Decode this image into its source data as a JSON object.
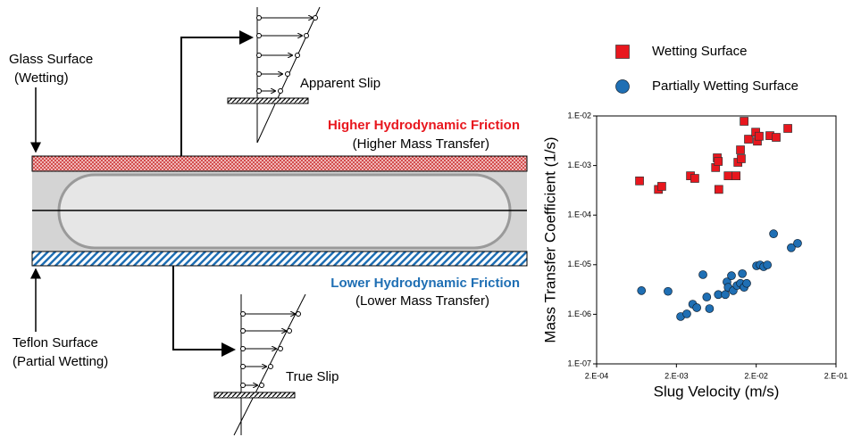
{
  "diagram": {
    "glass_label": "Glass Surface",
    "glass_sub": "(Wetting)",
    "apparent_slip": "Apparent Slip",
    "higher_friction": "Higher Hydrodynamic Friction",
    "higher_sub": "(Higher Mass Transfer)",
    "lower_friction": "Lower Hydrodynamic Friction",
    "lower_sub": "(Lower Mass Transfer)",
    "teflon_label": "Teflon Surface",
    "teflon_sub": "(Partial Wetting)",
    "true_slip": "True Slip"
  },
  "chart_data": {
    "type": "scatter",
    "xlabel": "Slug Velocity (m/s)",
    "ylabel": "Mass Transfer Coefficient (1/s)",
    "log_x": true,
    "log_y": true,
    "xlim": [
      0.0002,
      0.2
    ],
    "ylim": [
      1e-07,
      0.01
    ],
    "xticks": [
      {
        "value": 0.0002,
        "label": "2.E-04"
      },
      {
        "value": 0.002,
        "label": "2.E-03"
      },
      {
        "value": 0.02,
        "label": "2.E-02"
      },
      {
        "value": 0.2,
        "label": "2.E-01"
      }
    ],
    "yticks": [
      {
        "value": 1e-07,
        "label": "1.E-07"
      },
      {
        "value": 1e-06,
        "label": "1.E-06"
      },
      {
        "value": 1e-05,
        "label": "1.E-05"
      },
      {
        "value": 0.0001,
        "label": "1.E-04"
      },
      {
        "value": 0.001,
        "label": "1.E-03"
      },
      {
        "value": 0.01,
        "label": "1.E-02"
      }
    ],
    "series": [
      {
        "name": "Wetting Surface",
        "color": "#e8171e",
        "marker": "square",
        "x": [
          0.00069,
          0.00119,
          0.00131,
          0.003,
          0.0034,
          0.0062,
          0.0065,
          0.0067,
          0.0068,
          0.0089,
          0.0112,
          0.0118,
          0.0127,
          0.013,
          0.0141,
          0.016,
          0.0197,
          0.0207,
          0.0218,
          0.0297,
          0.0356,
          0.0498
        ],
        "values": [
          0.00049,
          0.00033,
          0.00038,
          0.00062,
          0.00055,
          0.00091,
          0.00143,
          0.00121,
          0.00033,
          0.00062,
          0.00062,
          0.00116,
          0.00207,
          0.00137,
          0.0078,
          0.0034,
          0.0047,
          0.0031,
          0.0039,
          0.004,
          0.0037,
          0.0056
        ]
      },
      {
        "name": "Partially Wetting Surface",
        "color": "#1f6fb4",
        "marker": "circle",
        "x": [
          0.00073,
          0.00157,
          0.00226,
          0.0027,
          0.0032,
          0.0036,
          0.0043,
          0.0048,
          0.0052,
          0.0067,
          0.0082,
          0.0086,
          0.0089,
          0.0098,
          0.0103,
          0.0115,
          0.0127,
          0.0134,
          0.0141,
          0.0152,
          0.0202,
          0.0224,
          0.0248,
          0.0276,
          0.033,
          0.055,
          0.066
        ],
        "values": [
          3e-06,
          2.9e-06,
          9e-07,
          1.02e-06,
          1.6e-06,
          1.36e-06,
          6.3e-06,
          2.23e-06,
          1.3e-06,
          2.5e-06,
          2.5e-06,
          4.5e-06,
          3.5e-06,
          6e-06,
          3e-06,
          3.8e-06,
          4.2e-06,
          6.6e-06,
          3.5e-06,
          4.2e-06,
          9.5e-06,
          9.9e-06,
          9.1e-06,
          9.9e-06,
          4.2e-05,
          2.2e-05,
          2.7e-05
        ]
      }
    ]
  }
}
